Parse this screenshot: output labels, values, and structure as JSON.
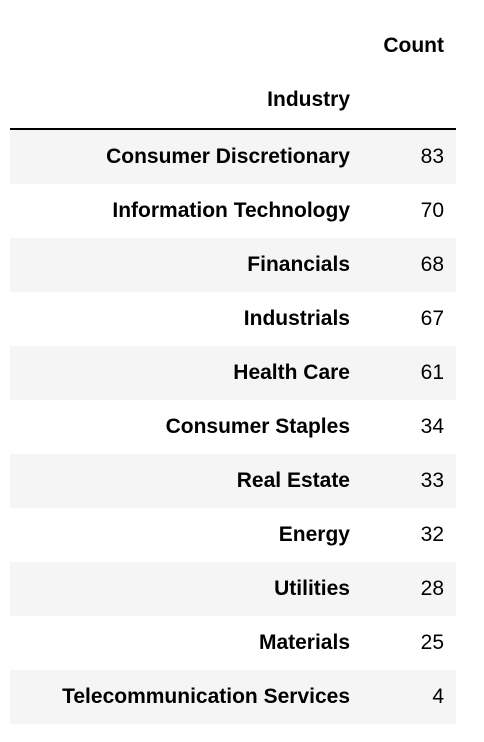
{
  "table": {
    "header": {
      "value_column": "Count",
      "index_name": "Industry"
    },
    "rows": [
      {
        "label": "Consumer Discretionary",
        "value": "83"
      },
      {
        "label": "Information Technology",
        "value": "70"
      },
      {
        "label": "Financials",
        "value": "68"
      },
      {
        "label": "Industrials",
        "value": "67"
      },
      {
        "label": "Health Care",
        "value": "61"
      },
      {
        "label": "Consumer Staples",
        "value": "34"
      },
      {
        "label": "Real Estate",
        "value": "33"
      },
      {
        "label": "Energy",
        "value": "32"
      },
      {
        "label": "Utilities",
        "value": "28"
      },
      {
        "label": "Materials",
        "value": "25"
      },
      {
        "label": "Telecommunication Services",
        "value": "4"
      }
    ]
  },
  "colors": {
    "row_shade": "#f5f5f5",
    "text": "#000000",
    "divider": "#000000"
  }
}
